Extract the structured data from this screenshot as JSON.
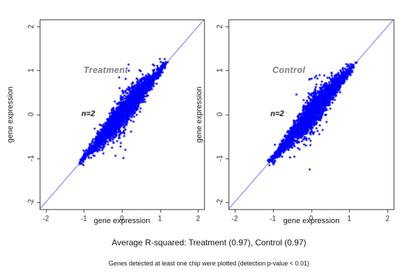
{
  "figure": {
    "captions": {
      "r_squared": "Average R-squared: Treatment (0.97), Control (0.97)",
      "footnote": "Genes detected at least one chip were plotted (detection p-value < 0.01)"
    },
    "colors": {
      "points": "#0000ff",
      "identity_line": "#1f1fff",
      "frame": "#333333",
      "tick_text": "#1a1a1a",
      "panel_label": "#7d7d7d",
      "annotation": "#000000"
    }
  },
  "chart_data": [
    {
      "type": "scatter",
      "title": "Treatment",
      "xlabel": "gene expression",
      "ylabel": "gene expression",
      "xlim": [
        -2.16,
        2.16
      ],
      "ylim": [
        -2.16,
        2.16
      ],
      "xticks": [
        -2,
        -1,
        0,
        1,
        2
      ],
      "yticks": [
        -2,
        -1,
        0,
        1,
        2
      ],
      "grid": false,
      "identity_line": true,
      "annotation": "n=2",
      "annotation_xy": [
        -1.06,
        0.02
      ],
      "r_squared": 0.97,
      "cloud": {
        "n": 2600,
        "seed": 42,
        "min": -1.16,
        "max": 1.21,
        "sd_base": 0.035,
        "sd_peak": 0.15,
        "sd_center": 0.05,
        "sd_width": 0.5,
        "outlier_rate": 0.03,
        "outlier_mult": 2.8
      }
    },
    {
      "type": "scatter",
      "title": "Control",
      "xlabel": "gene expression",
      "ylabel": "gene expression",
      "xlim": [
        -2.16,
        2.16
      ],
      "ylim": [
        -2.16,
        2.16
      ],
      "xticks": [
        -2,
        -1,
        0,
        1,
        2
      ],
      "yticks": [
        -2,
        -1,
        0,
        1,
        2
      ],
      "grid": false,
      "identity_line": true,
      "annotation": "n=2",
      "annotation_xy": [
        -1.06,
        0.02
      ],
      "r_squared": 0.97,
      "cloud": {
        "n": 2600,
        "seed": 77,
        "min": -1.16,
        "max": 1.21,
        "sd_base": 0.035,
        "sd_peak": 0.15,
        "sd_center": 0.05,
        "sd_width": 0.5,
        "outlier_rate": 0.03,
        "outlier_mult": 2.8
      }
    }
  ]
}
